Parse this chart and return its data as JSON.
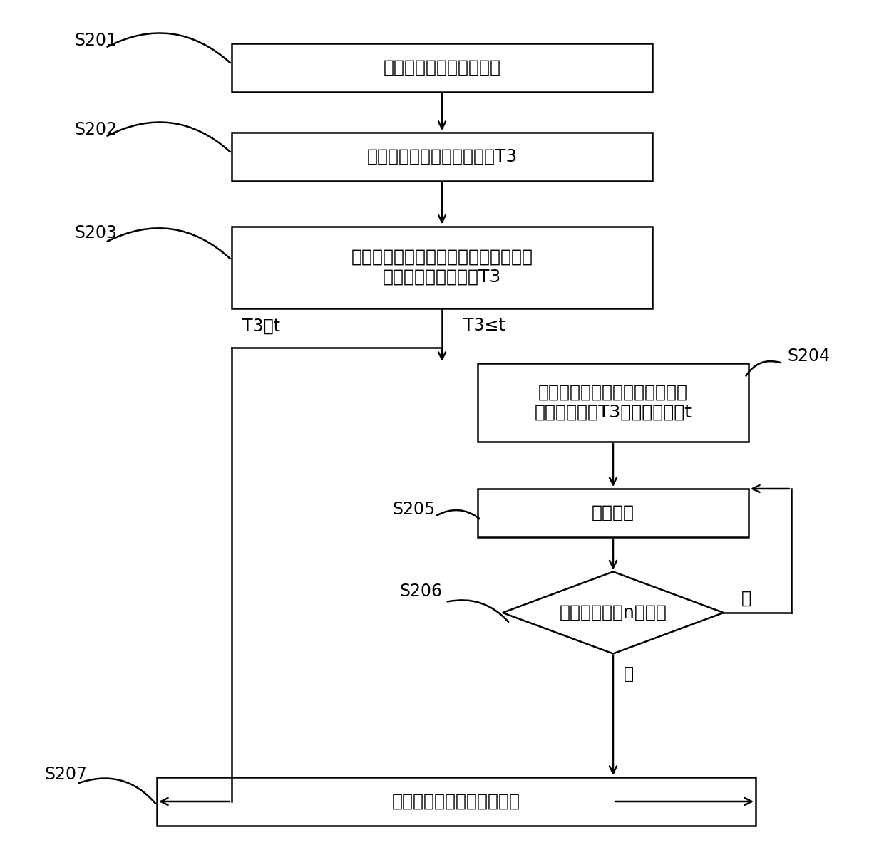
{
  "bg_color": "#ffffff",
  "box_edge_color": "#000000",
  "arrow_color": "#000000",
  "text_color": "#000000",
  "font_size": 18,
  "label_font_size": 17,
  "box1_text": "空调系统以除霜模式运行",
  "box2_text": "检测室外换热器的出口温度T3",
  "box3_line1": "在空调系统满足退出除霜模式的条件时",
  "box3_line2": "，判断此时的温度值T3",
  "box4_line1": "通过调大节流部件例如电子膨胀",
  "box4_line2": "阀的开度以使T3大于预设温度t",
  "box5_text": "开始计时",
  "diamond_text": "计时时间大于n分钟？",
  "box7_text": "控制空调系统进入制热模式",
  "branch_left": "T3＞t",
  "branch_right": "T3≤t",
  "yes_label": "是",
  "no_label": "否",
  "labels": [
    "S201",
    "S202",
    "S203",
    "S204",
    "S205",
    "S206",
    "S207"
  ]
}
